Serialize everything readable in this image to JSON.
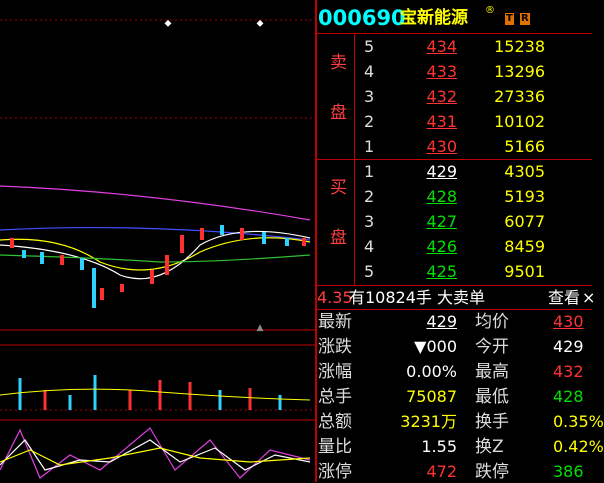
{
  "header": {
    "code": "000690",
    "name": "宝新能源",
    "mark": "®",
    "badges": [
      "T",
      "R"
    ]
  },
  "sell": {
    "labels": [
      "卖",
      "盘"
    ],
    "rows": [
      {
        "level": "5",
        "price": "434",
        "volume": "15238"
      },
      {
        "level": "4",
        "price": "433",
        "volume": "13296"
      },
      {
        "level": "3",
        "price": "432",
        "volume": "27336"
      },
      {
        "level": "2",
        "price": "431",
        "volume": "10102"
      },
      {
        "level": "1",
        "price": "430",
        "volume": "5166"
      }
    ]
  },
  "buy": {
    "labels": [
      "买",
      "盘"
    ],
    "rows": [
      {
        "level": "1",
        "price": "429",
        "volume": "4305"
      },
      {
        "level": "2",
        "price": "428",
        "volume": "5193"
      },
      {
        "level": "3",
        "price": "427",
        "volume": "6077"
      },
      {
        "level": "4",
        "price": "426",
        "volume": "8459"
      },
      {
        "level": "5",
        "price": "425",
        "volume": "9501"
      }
    ]
  },
  "notice": {
    "time": "4.35",
    "text": "有10824手 大卖单",
    "button": "查看",
    "close": "×"
  },
  "stats": [
    [
      "最新",
      "429",
      "均价",
      "430"
    ],
    [
      "涨跌",
      "▼000",
      "今开",
      "429"
    ],
    [
      "涨幅",
      "0.00%",
      "最高",
      "432"
    ],
    [
      "总手",
      "75087",
      "最低",
      "428"
    ],
    [
      "总额",
      "3231万",
      "换手",
      "0.35%"
    ],
    [
      "量比",
      "1.55",
      "换Z",
      "0.42%"
    ],
    [
      "涨停",
      "472",
      "跌停",
      "386"
    ]
  ]
}
